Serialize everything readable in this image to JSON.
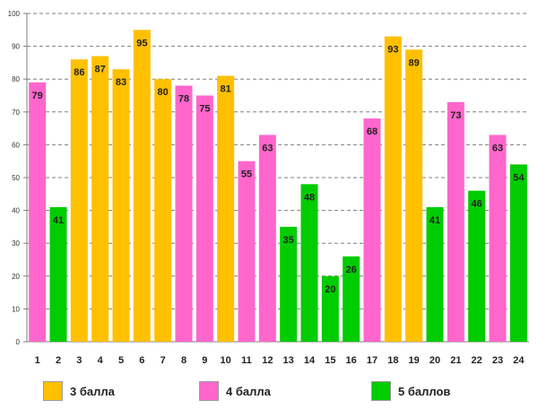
{
  "chart_data": {
    "type": "bar",
    "title": "",
    "xlabel": "",
    "ylabel": "",
    "ylim": [
      0,
      100
    ],
    "yticks": [
      0,
      10,
      20,
      30,
      40,
      50,
      60,
      70,
      80,
      90,
      100
    ],
    "grid": "horizontal dashed",
    "categories": [
      "1",
      "2",
      "3",
      "4",
      "5",
      "6",
      "7",
      "8",
      "9",
      "10",
      "11",
      "12",
      "13",
      "14",
      "15",
      "16",
      "17",
      "18",
      "19",
      "20",
      "21",
      "22",
      "23",
      "24"
    ],
    "values": [
      79,
      41,
      86,
      87,
      83,
      95,
      80,
      78,
      75,
      81,
      55,
      63,
      35,
      48,
      20,
      26,
      68,
      93,
      89,
      41,
      73,
      46,
      63,
      54
    ],
    "groups": [
      "4",
      "5",
      "3",
      "3",
      "3",
      "3",
      "3",
      "4",
      "4",
      "3",
      "4",
      "4",
      "5",
      "5",
      "5",
      "5",
      "4",
      "3",
      "3",
      "5",
      "4",
      "5",
      "4",
      "5"
    ],
    "legend": [
      {
        "key": "3",
        "label": "3 балла",
        "color": "#ffc000"
      },
      {
        "key": "4",
        "label": "4 балла",
        "color": "#ff66cc"
      },
      {
        "key": "5",
        "label": "5 баллов",
        "color": "#00cc00"
      }
    ],
    "legend_position": "bottom"
  }
}
